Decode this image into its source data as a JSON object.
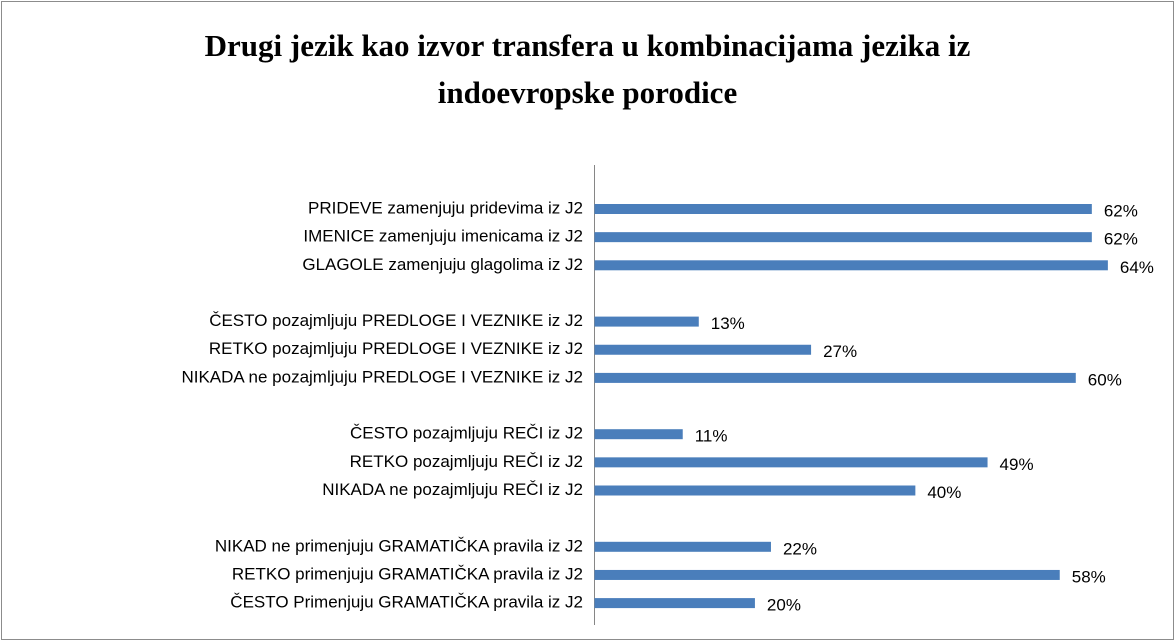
{
  "chart_data": {
    "type": "bar",
    "orientation": "horizontal",
    "title": "Drugi jezik kao izvor transfera u kombinacijama jezika iz indoevropske porodice",
    "categories": [
      "PRIDEVE zamenjuju pridevima iz J2",
      "IMENICE zamenjuju imenicama iz J2",
      "GLAGOLE zamenjuju glagolima iz J2",
      null,
      "ČESTO pozajmljuju PREDLOGE I VEZNIKE iz J2",
      "RETKO pozajmljuju PREDLOGE I VEZNIKE iz J2",
      "NIKADA ne pozajmljuju PREDLOGE I VEZNIKE iz J2",
      null,
      "ČESTO pozajmljuju REČI iz J2",
      "RETKO pozajmljuju REČI iz J2",
      "NIKADA ne pozajmljuju REČI iz J2",
      null,
      "NIKAD ne primenjuju GRAMATIČKA pravila iz J2",
      "RETKO primenjuju GRAMATIČKA pravila iz J2",
      "ČESTO Primenjuju GRAMATIČKA pravila iz J2"
    ],
    "values": [
      62,
      62,
      64,
      null,
      13,
      27,
      60,
      null,
      11,
      49,
      40,
      null,
      22,
      58,
      20
    ],
    "value_labels": [
      "62%",
      "62%",
      "64%",
      null,
      "13%",
      "27%",
      "60%",
      null,
      "11%",
      "49%",
      "40%",
      null,
      "22%",
      "58%",
      "20%"
    ],
    "color": "#4a7ebb",
    "xlim": [
      0,
      70
    ]
  }
}
